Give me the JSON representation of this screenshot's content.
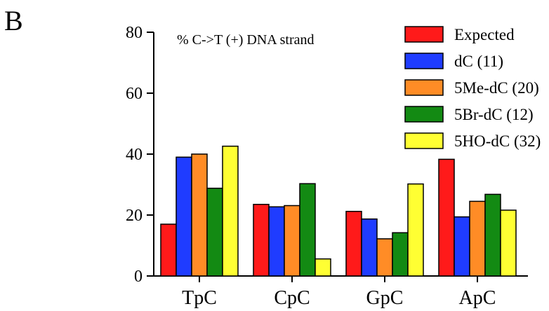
{
  "panel_label": "B",
  "chart_data": {
    "type": "bar",
    "title": "",
    "annotation": "%  C->T (+) DNA strand",
    "xlabel": "",
    "ylabel": "",
    "ylim": [
      0,
      80
    ],
    "yticks": [
      0,
      20,
      40,
      60,
      80
    ],
    "grid": false,
    "legend_position": "top-right",
    "categories": [
      "TpC",
      "CpC",
      "GpC",
      "ApC"
    ],
    "series": [
      {
        "name": "Expected",
        "color": "#ff1a1a",
        "values": [
          17,
          23.5,
          21.2,
          38.3
        ]
      },
      {
        "name": "dC (11)",
        "color": "#1f3cff",
        "values": [
          39,
          22.7,
          18.7,
          19.4
        ]
      },
      {
        "name": "5Me-dC (20)",
        "color": "#ff8c26",
        "values": [
          40,
          23.1,
          12.2,
          24.5
        ]
      },
      {
        "name": "5Br-dC (12)",
        "color": "#138a13",
        "values": [
          28.8,
          30.3,
          14.2,
          26.8
        ]
      },
      {
        "name": "5HO-dC (32)",
        "color": "#ffff33",
        "values": [
          42.6,
          5.6,
          30.2,
          21.6
        ]
      }
    ]
  }
}
